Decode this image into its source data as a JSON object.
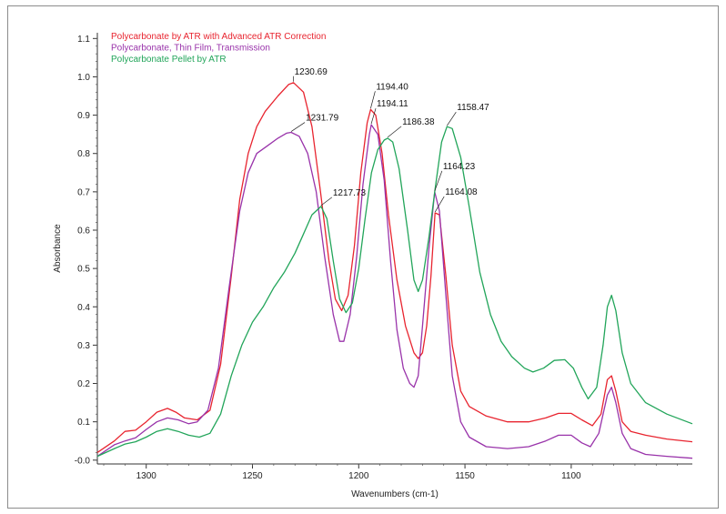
{
  "chart_data": {
    "type": "line",
    "title": "",
    "xlabel": "Wavenumbers (cm-1)",
    "ylabel": "Absorbance",
    "xlim": [
      1323,
      1043
    ],
    "ylim": [
      -0.01,
      1.115
    ],
    "x_reversed": true,
    "x_ticks": [
      1300,
      1250,
      1200,
      1150,
      1100
    ],
    "y_ticks": [
      0.0,
      0.1,
      0.2,
      0.3,
      0.4,
      0.5,
      0.6,
      0.7,
      0.8,
      0.9,
      1.0,
      1.1
    ],
    "y_tick_labels": [
      "-0.0",
      "0.1",
      "0.2",
      "0.3",
      "0.4",
      "0.5",
      "0.6",
      "0.7",
      "0.8",
      "0.9",
      "1.0",
      "1.1"
    ],
    "grid": false,
    "legend_position": "top-left",
    "series": [
      {
        "name": "Polycarbonate by ATR with Advanced ATR Correction",
        "color": "#e8242f",
        "points": [
          [
            1323,
            0.02
          ],
          [
            1315,
            0.05
          ],
          [
            1310,
            0.075
          ],
          [
            1305,
            0.078
          ],
          [
            1300,
            0.1
          ],
          [
            1295,
            0.125
          ],
          [
            1290,
            0.135
          ],
          [
            1286,
            0.125
          ],
          [
            1282,
            0.11
          ],
          [
            1276,
            0.105
          ],
          [
            1270,
            0.13
          ],
          [
            1265,
            0.25
          ],
          [
            1260,
            0.48
          ],
          [
            1256,
            0.68
          ],
          [
            1252,
            0.8
          ],
          [
            1248,
            0.87
          ],
          [
            1244,
            0.91
          ],
          [
            1238,
            0.95
          ],
          [
            1233,
            0.98
          ],
          [
            1230.69,
            0.985
          ],
          [
            1226,
            0.96
          ],
          [
            1222,
            0.87
          ],
          [
            1218,
            0.7
          ],
          [
            1214,
            0.52
          ],
          [
            1211,
            0.42
          ],
          [
            1208,
            0.39
          ],
          [
            1205,
            0.43
          ],
          [
            1202,
            0.56
          ],
          [
            1199,
            0.75
          ],
          [
            1196,
            0.88
          ],
          [
            1194.4,
            0.915
          ],
          [
            1192,
            0.9
          ],
          [
            1189,
            0.8
          ],
          [
            1186,
            0.64
          ],
          [
            1182,
            0.47
          ],
          [
            1178,
            0.35
          ],
          [
            1174,
            0.28
          ],
          [
            1172,
            0.265
          ],
          [
            1170,
            0.28
          ],
          [
            1168,
            0.35
          ],
          [
            1166,
            0.48
          ],
          [
            1164.08,
            0.645
          ],
          [
            1162,
            0.64
          ],
          [
            1159,
            0.48
          ],
          [
            1156,
            0.3
          ],
          [
            1152,
            0.18
          ],
          [
            1148,
            0.14
          ],
          [
            1140,
            0.115
          ],
          [
            1130,
            0.1
          ],
          [
            1120,
            0.1
          ],
          [
            1112,
            0.11
          ],
          [
            1106,
            0.122
          ],
          [
            1100,
            0.122
          ],
          [
            1095,
            0.105
          ],
          [
            1090,
            0.09
          ],
          [
            1086,
            0.12
          ],
          [
            1083,
            0.21
          ],
          [
            1081,
            0.22
          ],
          [
            1079,
            0.18
          ],
          [
            1076,
            0.1
          ],
          [
            1072,
            0.075
          ],
          [
            1065,
            0.065
          ],
          [
            1055,
            0.055
          ],
          [
            1043,
            0.048
          ]
        ]
      },
      {
        "name": "Polycarbonate, Thin Film, Transmission",
        "color": "#9933aa",
        "points": [
          [
            1323,
            0.01
          ],
          [
            1315,
            0.04
          ],
          [
            1310,
            0.05
          ],
          [
            1305,
            0.058
          ],
          [
            1300,
            0.08
          ],
          [
            1295,
            0.1
          ],
          [
            1290,
            0.11
          ],
          [
            1285,
            0.105
          ],
          [
            1280,
            0.095
          ],
          [
            1276,
            0.1
          ],
          [
            1271,
            0.13
          ],
          [
            1266,
            0.24
          ],
          [
            1261,
            0.45
          ],
          [
            1256,
            0.65
          ],
          [
            1252,
            0.75
          ],
          [
            1248,
            0.8
          ],
          [
            1243,
            0.82
          ],
          [
            1238,
            0.84
          ],
          [
            1234,
            0.853
          ],
          [
            1231.79,
            0.855
          ],
          [
            1228,
            0.845
          ],
          [
            1224,
            0.8
          ],
          [
            1220,
            0.7
          ],
          [
            1216,
            0.53
          ],
          [
            1212,
            0.38
          ],
          [
            1209,
            0.31
          ],
          [
            1207,
            0.31
          ],
          [
            1204,
            0.38
          ],
          [
            1201,
            0.53
          ],
          [
            1198,
            0.72
          ],
          [
            1195,
            0.85
          ],
          [
            1194.11,
            0.875
          ],
          [
            1191,
            0.85
          ],
          [
            1188,
            0.73
          ],
          [
            1185,
            0.52
          ],
          [
            1182,
            0.34
          ],
          [
            1179,
            0.24
          ],
          [
            1176,
            0.2
          ],
          [
            1174,
            0.19
          ],
          [
            1172,
            0.22
          ],
          [
            1170,
            0.35
          ],
          [
            1167,
            0.55
          ],
          [
            1164.23,
            0.7
          ],
          [
            1162,
            0.65
          ],
          [
            1159,
            0.43
          ],
          [
            1156,
            0.22
          ],
          [
            1152,
            0.1
          ],
          [
            1148,
            0.06
          ],
          [
            1140,
            0.035
          ],
          [
            1130,
            0.03
          ],
          [
            1120,
            0.035
          ],
          [
            1112,
            0.05
          ],
          [
            1106,
            0.065
          ],
          [
            1100,
            0.065
          ],
          [
            1095,
            0.045
          ],
          [
            1091,
            0.035
          ],
          [
            1087,
            0.07
          ],
          [
            1083,
            0.17
          ],
          [
            1081,
            0.19
          ],
          [
            1079,
            0.15
          ],
          [
            1076,
            0.07
          ],
          [
            1072,
            0.03
          ],
          [
            1065,
            0.015
          ],
          [
            1055,
            0.01
          ],
          [
            1043,
            0.005
          ]
        ]
      },
      {
        "name": "Polycarbonate Pellet by ATR",
        "color": "#22a55a",
        "points": [
          [
            1323,
            0.01
          ],
          [
            1315,
            0.03
          ],
          [
            1310,
            0.042
          ],
          [
            1305,
            0.048
          ],
          [
            1300,
            0.06
          ],
          [
            1295,
            0.075
          ],
          [
            1290,
            0.082
          ],
          [
            1285,
            0.075
          ],
          [
            1280,
            0.065
          ],
          [
            1275,
            0.06
          ],
          [
            1270,
            0.07
          ],
          [
            1265,
            0.12
          ],
          [
            1260,
            0.22
          ],
          [
            1255,
            0.3
          ],
          [
            1250,
            0.36
          ],
          [
            1245,
            0.4
          ],
          [
            1240,
            0.45
          ],
          [
            1235,
            0.49
          ],
          [
            1230,
            0.54
          ],
          [
            1226,
            0.59
          ],
          [
            1222,
            0.64
          ],
          [
            1217.73,
            0.662
          ],
          [
            1215,
            0.63
          ],
          [
            1212,
            0.52
          ],
          [
            1209,
            0.42
          ],
          [
            1206,
            0.385
          ],
          [
            1203,
            0.41
          ],
          [
            1200,
            0.5
          ],
          [
            1197,
            0.63
          ],
          [
            1194,
            0.75
          ],
          [
            1191,
            0.81
          ],
          [
            1188,
            0.835
          ],
          [
            1186.38,
            0.84
          ],
          [
            1184,
            0.83
          ],
          [
            1181,
            0.76
          ],
          [
            1177,
            0.6
          ],
          [
            1174,
            0.47
          ],
          [
            1172,
            0.44
          ],
          [
            1170,
            0.47
          ],
          [
            1167,
            0.58
          ],
          [
            1164,
            0.71
          ],
          [
            1161,
            0.83
          ],
          [
            1158.47,
            0.87
          ],
          [
            1156,
            0.865
          ],
          [
            1152,
            0.79
          ],
          [
            1148,
            0.66
          ],
          [
            1143,
            0.49
          ],
          [
            1138,
            0.38
          ],
          [
            1133,
            0.31
          ],
          [
            1128,
            0.27
          ],
          [
            1122,
            0.24
          ],
          [
            1118,
            0.23
          ],
          [
            1113,
            0.24
          ],
          [
            1108,
            0.26
          ],
          [
            1103,
            0.262
          ],
          [
            1099,
            0.24
          ],
          [
            1095,
            0.19
          ],
          [
            1092,
            0.16
          ],
          [
            1088,
            0.19
          ],
          [
            1085,
            0.3
          ],
          [
            1083,
            0.4
          ],
          [
            1081,
            0.43
          ],
          [
            1079,
            0.39
          ],
          [
            1076,
            0.28
          ],
          [
            1072,
            0.2
          ],
          [
            1065,
            0.15
          ],
          [
            1055,
            0.12
          ],
          [
            1043,
            0.095
          ]
        ]
      }
    ],
    "annotations": [
      {
        "text": "1230.69",
        "series": 0,
        "x": 1230.69,
        "y": 0.985
      },
      {
        "text": "1194.40",
        "series": 0,
        "x": 1194.4,
        "y": 0.915
      },
      {
        "text": "1194.11",
        "series": 1,
        "x": 1194.11,
        "y": 0.875
      },
      {
        "text": "1231.79",
        "series": 1,
        "x": 1231.79,
        "y": 0.855
      },
      {
        "text": "1186.38",
        "series": 2,
        "x": 1186.38,
        "y": 0.84
      },
      {
        "text": "1158.47",
        "series": 2,
        "x": 1158.47,
        "y": 0.87
      },
      {
        "text": "1164.23",
        "series": 1,
        "x": 1164.23,
        "y": 0.7
      },
      {
        "text": "1164.08",
        "series": 0,
        "x": 1164.08,
        "y": 0.645
      },
      {
        "text": "1217.73",
        "series": 2,
        "x": 1217.73,
        "y": 0.662
      }
    ]
  }
}
